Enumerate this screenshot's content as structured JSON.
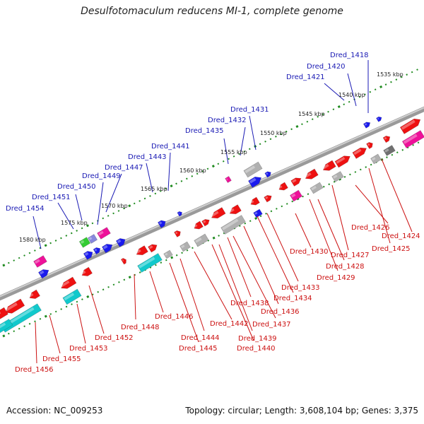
{
  "title": "Desulfotomaculum reducens MI-1, complete genome",
  "footer": {
    "accession": "Accession: NC_009253",
    "stats": "Topology: circular; Length: 3,608,104 bp; Genes: 3,375"
  },
  "colors": {
    "backbone": "#7a7a7a",
    "ticks": "#1e8a1e",
    "top_gene_label": "#1a1ab4",
    "bottom_gene_label": "#cc1111",
    "red": "#ee1111",
    "blue": "#1a1aee",
    "cyan": "#11c9cc",
    "magenta": "#ee1199",
    "gray": "#b0b0b0",
    "dark_gray": "#707070",
    "green": "#33cc33",
    "purple": "#8888dd"
  },
  "scale_labels": [
    "1535 kbp",
    "1540 kbp",
    "1545 kbp",
    "1550 kbp",
    "1555 kbp",
    "1560 kbp",
    "1565 kbp",
    "1570 kbp",
    "1575 kbp",
    "1580 kbp"
  ],
  "top_gene_labels": [
    "Dred_1418",
    "Dred_1420",
    "Dred_1421",
    "Dred_1431",
    "Dred_1432",
    "Dred_1435",
    "Dred_1441",
    "Dred_1443",
    "Dred_1447",
    "Dred_1449",
    "Dred_1450",
    "Dred_1451",
    "Dred_1454"
  ],
  "bottom_gene_labels": [
    "Dred_1424",
    "Dred_1425",
    "Dred_1426",
    "Dred_1427",
    "Dred_1428",
    "Dred_1429",
    "Dred_1430",
    "Dred_1433",
    "Dred_1434",
    "Dred_1436",
    "Dred_1437",
    "Dred_1438",
    "Dred_1439",
    "Dred_1440",
    "Dred_1442",
    "Dred_1444",
    "Dred_1445",
    "Dred_1446",
    "Dred_1448",
    "Dred_1452",
    "Dred_1453",
    "Dred_1455",
    "Dred_1456"
  ]
}
